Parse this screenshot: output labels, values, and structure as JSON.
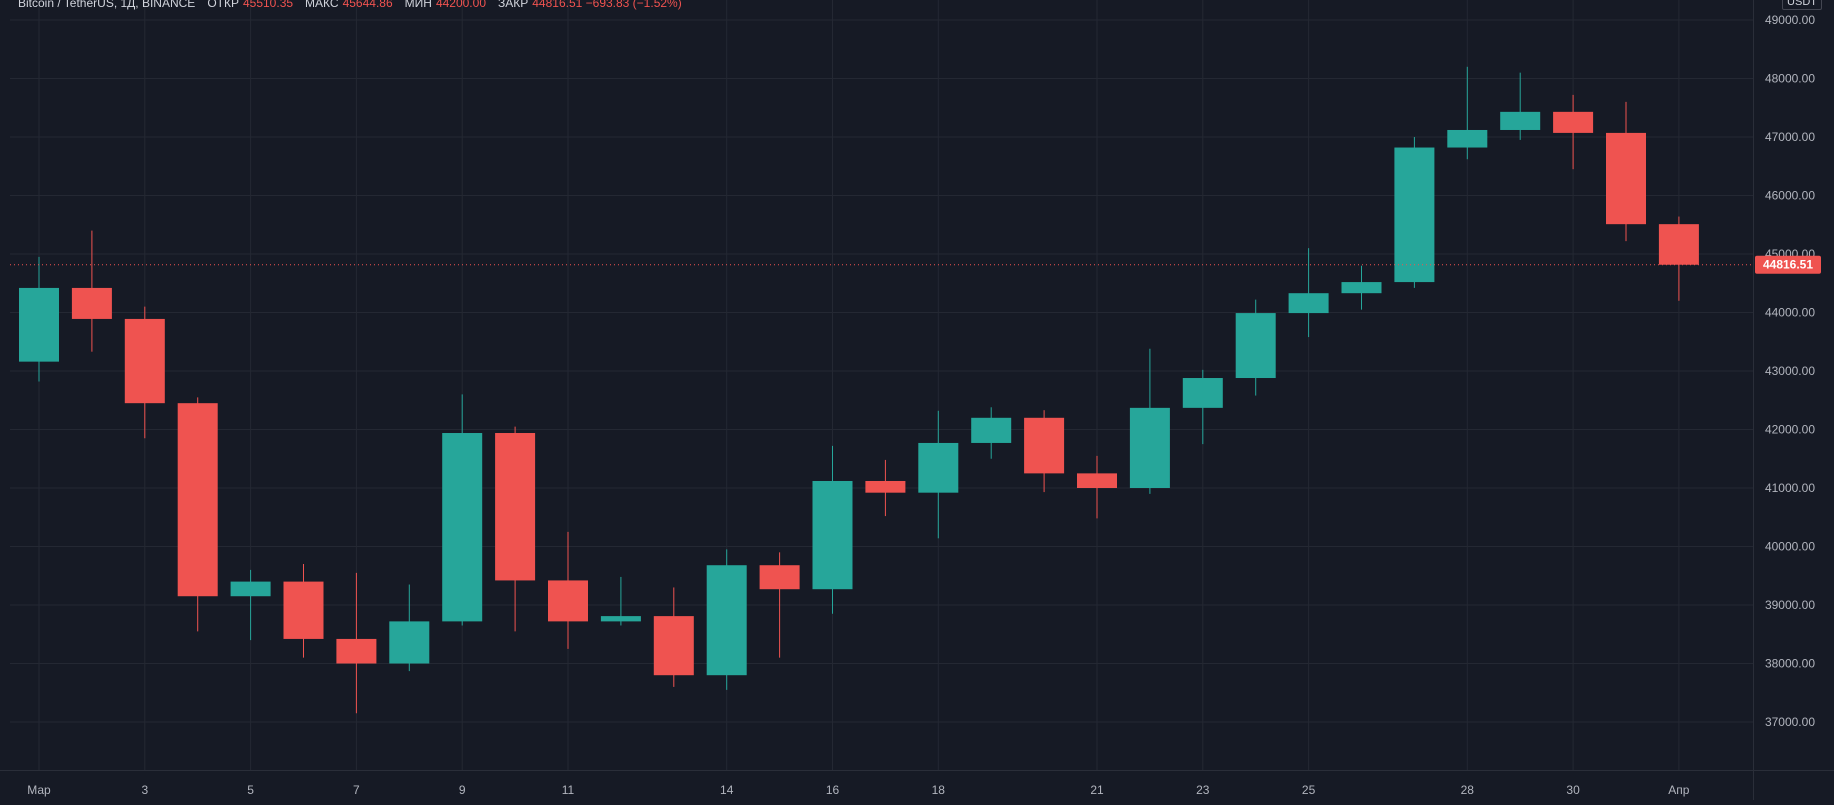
{
  "header": {
    "symbol": "Bitcoin / TetherUS, 1Д, BINANCE",
    "open_label": "ОТКР",
    "open_value": "45510.35",
    "high_label": "МАКС",
    "high_value": "45644.86",
    "low_label": "МИН",
    "low_value": "44200.00",
    "close_label": "ЗАКР",
    "close_value": "44816.51 −693.83 (−1.52%)"
  },
  "currency": "USDT",
  "last_price_label": "44816.51",
  "colors": {
    "background": "#161a25",
    "grid": "#242833",
    "up": "#26a69a",
    "down": "#ef5350",
    "axis_text": "#b2b5be",
    "price_line": "#ef5350"
  },
  "chart_data": {
    "type": "candlestick",
    "title": "Bitcoin / TetherUS, 1Д, BINANCE",
    "ylim": [
      36000,
      49300
    ],
    "grid": true,
    "y_ticks": [
      "37000.00",
      "38000.00",
      "39000.00",
      "40000.00",
      "41000.00",
      "42000.00",
      "43000.00",
      "44000.00",
      "45000.00",
      "46000.00",
      "47000.00",
      "48000.00",
      "49000.00"
    ],
    "x_tick_labels": [
      "Мар",
      "3",
      "5",
      "7",
      "9",
      "11",
      "14",
      "16",
      "18",
      "21",
      "23",
      "25",
      "28",
      "30",
      "Апр"
    ],
    "x_tick_index": [
      0,
      2,
      4,
      6,
      8,
      10,
      13,
      15,
      17,
      20,
      22,
      24,
      27,
      29,
      31
    ],
    "last_price": 44816.51,
    "ohlc": [
      {
        "o": 43160,
        "h": 44950,
        "l": 42820,
        "c": 44420
      },
      {
        "o": 44420,
        "h": 45400,
        "l": 43330,
        "c": 43890
      },
      {
        "o": 43890,
        "h": 44100,
        "l": 41850,
        "c": 42450
      },
      {
        "o": 42450,
        "h": 42550,
        "l": 38550,
        "c": 39150
      },
      {
        "o": 39150,
        "h": 39600,
        "l": 38400,
        "c": 39400
      },
      {
        "o": 39400,
        "h": 39700,
        "l": 38100,
        "c": 38420
      },
      {
        "o": 38420,
        "h": 39550,
        "l": 37150,
        "c": 38000
      },
      {
        "o": 38000,
        "h": 39350,
        "l": 37870,
        "c": 38720
      },
      {
        "o": 38720,
        "h": 42600,
        "l": 38650,
        "c": 41940
      },
      {
        "o": 41940,
        "h": 42050,
        "l": 38550,
        "c": 39420
      },
      {
        "o": 39420,
        "h": 40250,
        "l": 38250,
        "c": 38720
      },
      {
        "o": 38720,
        "h": 39480,
        "l": 38650,
        "c": 38810
      },
      {
        "o": 38810,
        "h": 39300,
        "l": 37600,
        "c": 37800
      },
      {
        "o": 37800,
        "h": 39950,
        "l": 37550,
        "c": 39680
      },
      {
        "o": 39680,
        "h": 39900,
        "l": 38100,
        "c": 39270
      },
      {
        "o": 39270,
        "h": 41720,
        "l": 38850,
        "c": 41120
      },
      {
        "o": 41120,
        "h": 41480,
        "l": 40520,
        "c": 40920
      },
      {
        "o": 40920,
        "h": 42320,
        "l": 40140,
        "c": 41770
      },
      {
        "o": 41770,
        "h": 42380,
        "l": 41500,
        "c": 42200
      },
      {
        "o": 42200,
        "h": 42330,
        "l": 40930,
        "c": 41250
      },
      {
        "o": 41250,
        "h": 41550,
        "l": 40480,
        "c": 41000
      },
      {
        "o": 41000,
        "h": 43380,
        "l": 40900,
        "c": 42370
      },
      {
        "o": 42370,
        "h": 43020,
        "l": 41750,
        "c": 42880
      },
      {
        "o": 42880,
        "h": 44220,
        "l": 42580,
        "c": 43990
      },
      {
        "o": 43990,
        "h": 45100,
        "l": 43580,
        "c": 44330
      },
      {
        "o": 44330,
        "h": 44800,
        "l": 44050,
        "c": 44520
      },
      {
        "o": 44520,
        "h": 47000,
        "l": 44420,
        "c": 46820
      },
      {
        "o": 46820,
        "h": 48200,
        "l": 46620,
        "c": 47120
      },
      {
        "o": 47120,
        "h": 48100,
        "l": 46950,
        "c": 47430
      },
      {
        "o": 47430,
        "h": 47720,
        "l": 46450,
        "c": 47070
      },
      {
        "o": 47070,
        "h": 47600,
        "l": 45220,
        "c": 45510
      },
      {
        "o": 45510,
        "h": 45640,
        "l": 44200,
        "c": 44816.51
      }
    ]
  }
}
